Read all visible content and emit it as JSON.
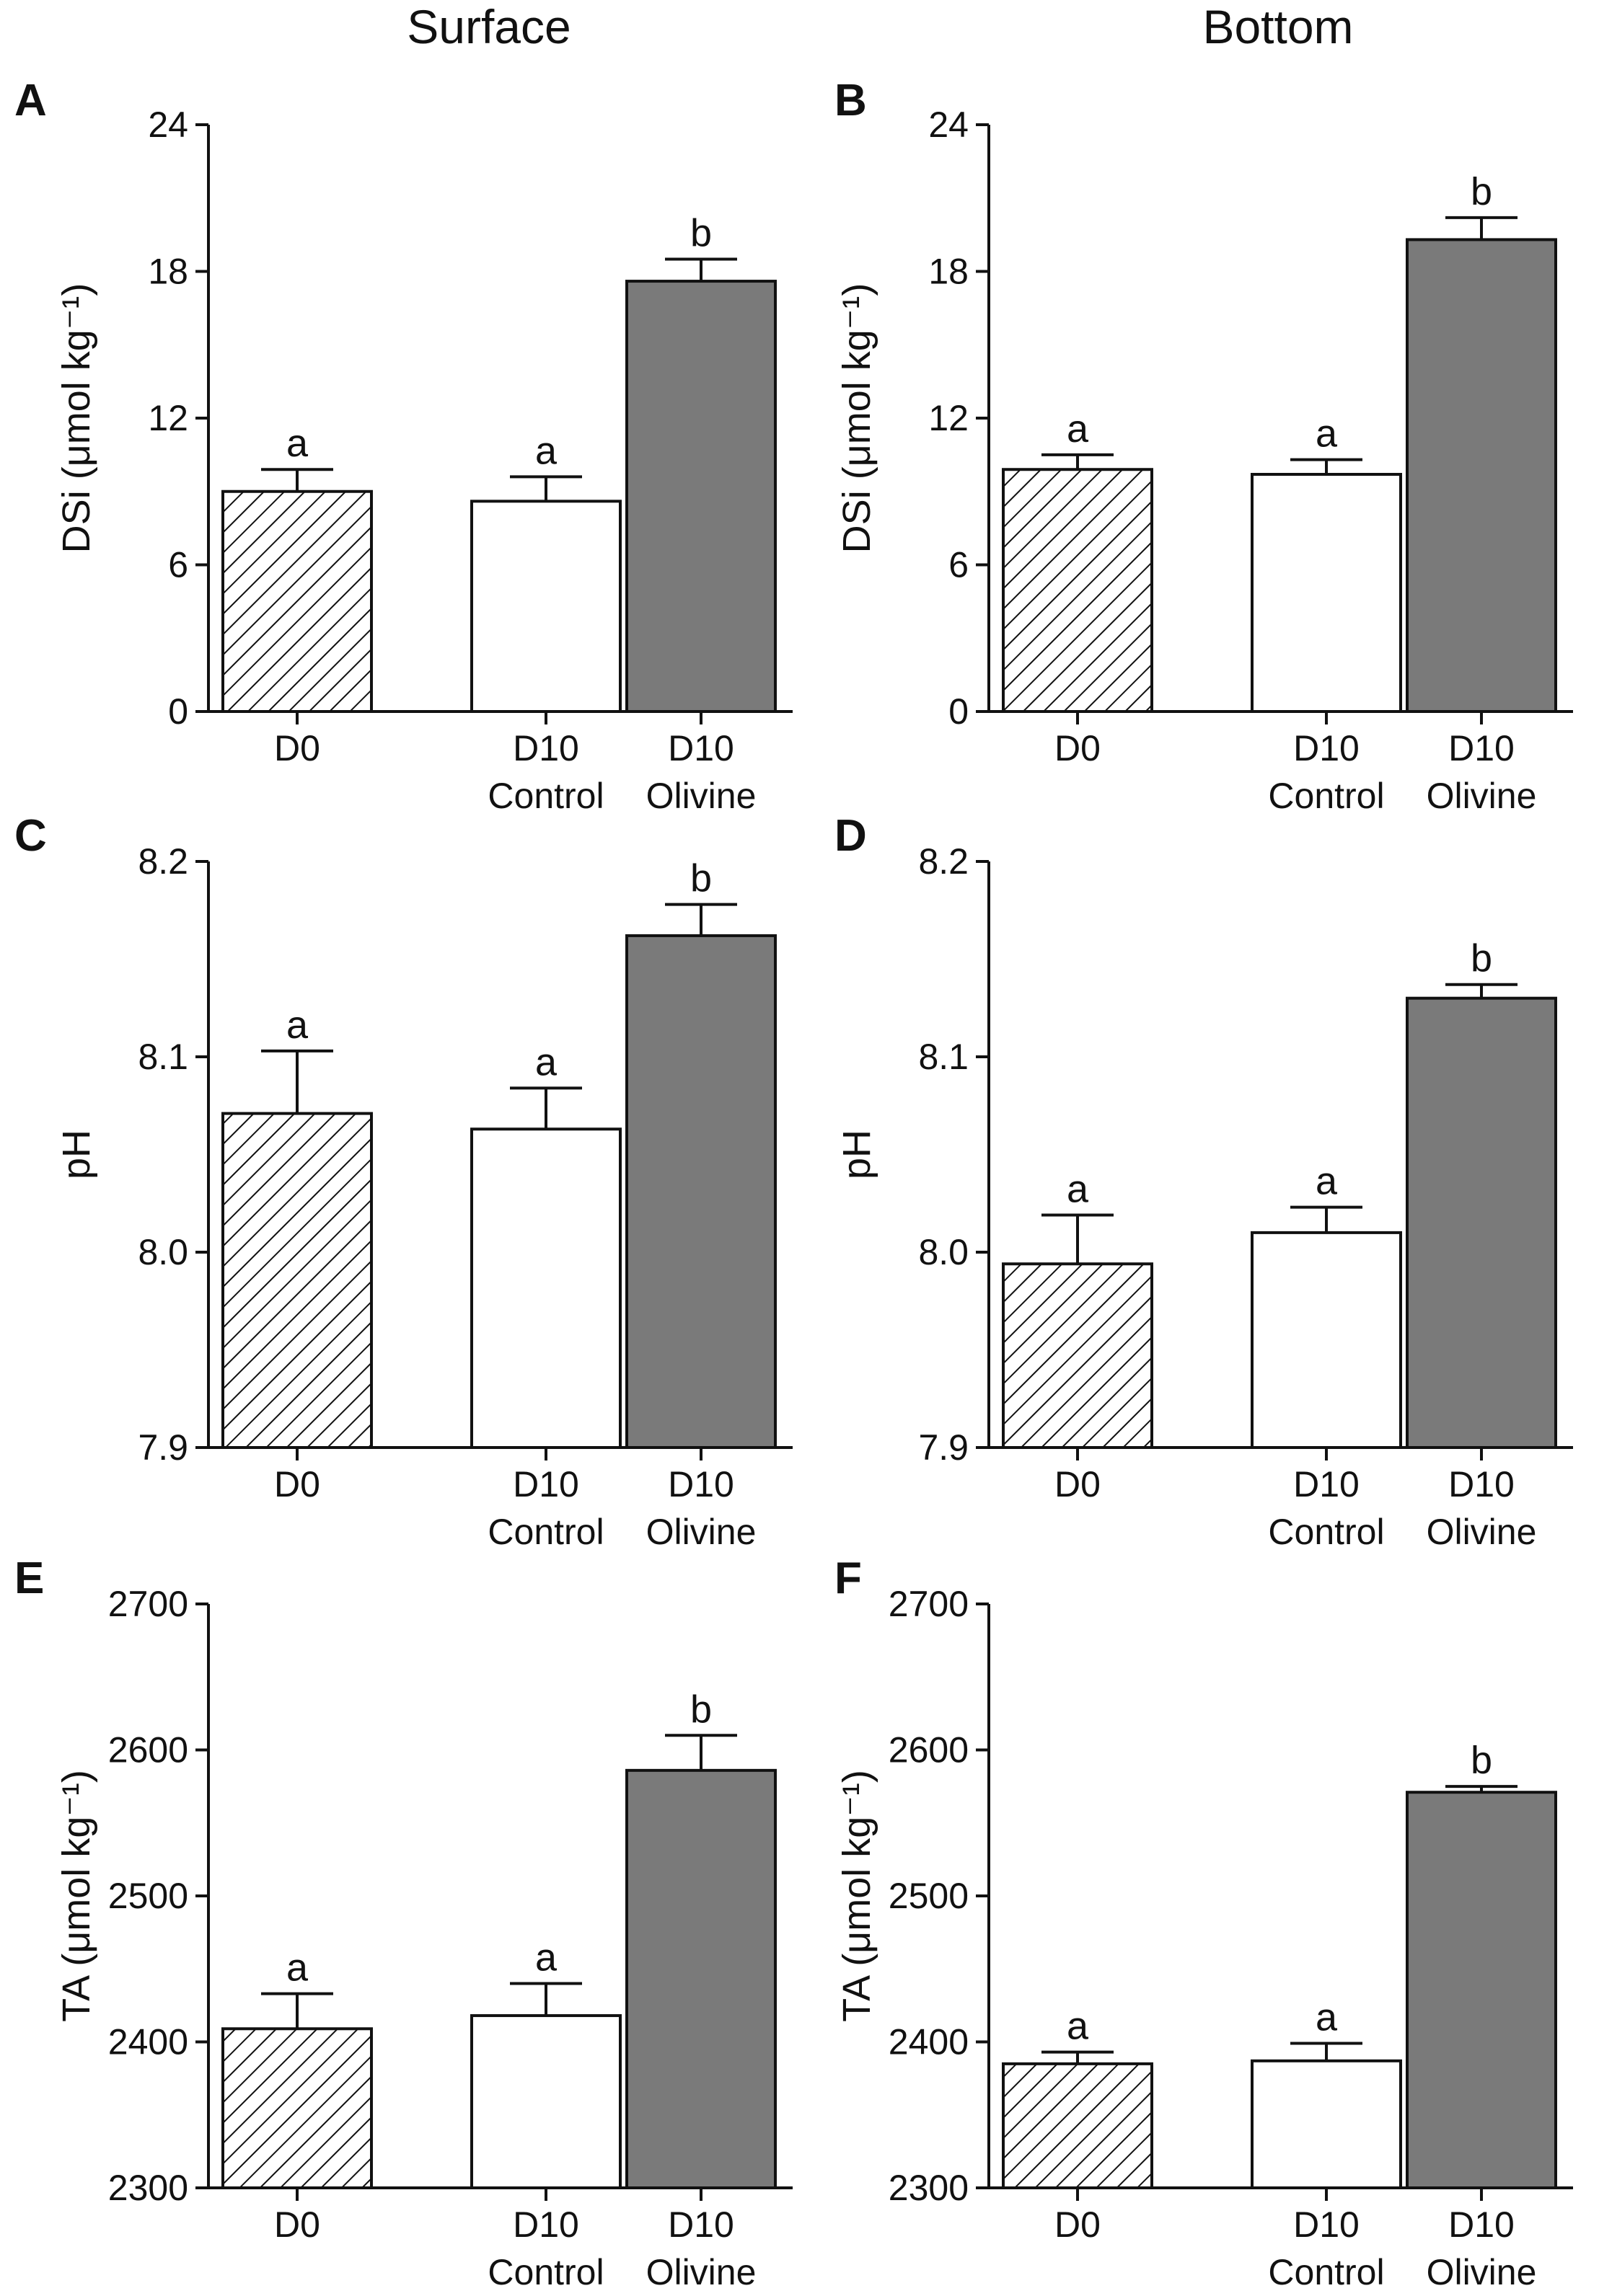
{
  "columns": [
    "Surface",
    "Bottom"
  ],
  "chart_data": [
    {
      "panel": "A",
      "column": "Surface",
      "type": "bar",
      "ylabel": "DSi (μmol kg⁻¹)",
      "ylim": [
        0,
        24
      ],
      "yticks": [
        0,
        6,
        12,
        18,
        24
      ],
      "categories": [
        [
          "D0"
        ],
        [
          "D10",
          "Control"
        ],
        [
          "D10",
          "Olivine"
        ]
      ],
      "values": [
        9.0,
        8.6,
        17.6
      ],
      "errors": [
        0.9,
        1.0,
        0.9
      ],
      "significance": [
        "a",
        "a",
        "b"
      ],
      "fills": [
        "hatched",
        "#ffffff",
        "#7a7a7a"
      ]
    },
    {
      "panel": "B",
      "column": "Bottom",
      "type": "bar",
      "ylabel": "DSi (μmol kg⁻¹)",
      "ylim": [
        0,
        24
      ],
      "yticks": [
        0,
        6,
        12,
        18,
        24
      ],
      "categories": [
        [
          "D0"
        ],
        [
          "D10",
          "Control"
        ],
        [
          "D10",
          "Olivine"
        ]
      ],
      "values": [
        9.9,
        9.7,
        19.3
      ],
      "errors": [
        0.6,
        0.6,
        0.9
      ],
      "significance": [
        "a",
        "a",
        "b"
      ],
      "fills": [
        "hatched",
        "#ffffff",
        "#7a7a7a"
      ]
    },
    {
      "panel": "C",
      "column": "Surface",
      "type": "bar",
      "ylabel": "pH",
      "ylim": [
        7.9,
        8.2
      ],
      "yticks": [
        7.9,
        8.0,
        8.1,
        8.2
      ],
      "categories": [
        [
          "D0"
        ],
        [
          "D10",
          "Control"
        ],
        [
          "D10",
          "Olivine"
        ]
      ],
      "values": [
        8.071,
        8.063,
        8.162
      ],
      "errors": [
        0.032,
        0.021,
        0.016
      ],
      "significance": [
        "a",
        "a",
        "b"
      ],
      "fills": [
        "hatched",
        "#ffffff",
        "#7a7a7a"
      ]
    },
    {
      "panel": "D",
      "column": "Bottom",
      "type": "bar",
      "ylabel": "pH",
      "ylim": [
        7.9,
        8.2
      ],
      "yticks": [
        7.9,
        8.0,
        8.1,
        8.2
      ],
      "categories": [
        [
          "D0"
        ],
        [
          "D10",
          "Control"
        ],
        [
          "D10",
          "Olivine"
        ]
      ],
      "values": [
        7.994,
        8.01,
        8.13
      ],
      "errors": [
        0.025,
        0.013,
        0.007
      ],
      "significance": [
        "a",
        "a",
        "b"
      ],
      "fills": [
        "hatched",
        "#ffffff",
        "#7a7a7a"
      ]
    },
    {
      "panel": "E",
      "column": "Surface",
      "type": "bar",
      "ylabel": "TA (μmol kg⁻¹)",
      "ylim": [
        2300,
        2700
      ],
      "yticks": [
        2300,
        2400,
        2500,
        2600,
        2700
      ],
      "categories": [
        [
          "D0"
        ],
        [
          "D10",
          "Control"
        ],
        [
          "D10",
          "Olivine"
        ]
      ],
      "values": [
        2409,
        2418,
        2586
      ],
      "errors": [
        24,
        22,
        24
      ],
      "significance": [
        "a",
        "a",
        "b"
      ],
      "fills": [
        "hatched",
        "#ffffff",
        "#7a7a7a"
      ]
    },
    {
      "panel": "F",
      "column": "Bottom",
      "type": "bar",
      "ylabel": "TA (μmol kg⁻¹)",
      "ylim": [
        2300,
        2700
      ],
      "yticks": [
        2300,
        2400,
        2500,
        2600,
        2700
      ],
      "categories": [
        [
          "D0"
        ],
        [
          "D10",
          "Control"
        ],
        [
          "D10",
          "Olivine"
        ]
      ],
      "values": [
        2385,
        2387,
        2571
      ],
      "errors": [
        8,
        12,
        4
      ],
      "significance": [
        "a",
        "a",
        "b"
      ],
      "fills": [
        "hatched",
        "#ffffff",
        "#7a7a7a"
      ]
    }
  ]
}
